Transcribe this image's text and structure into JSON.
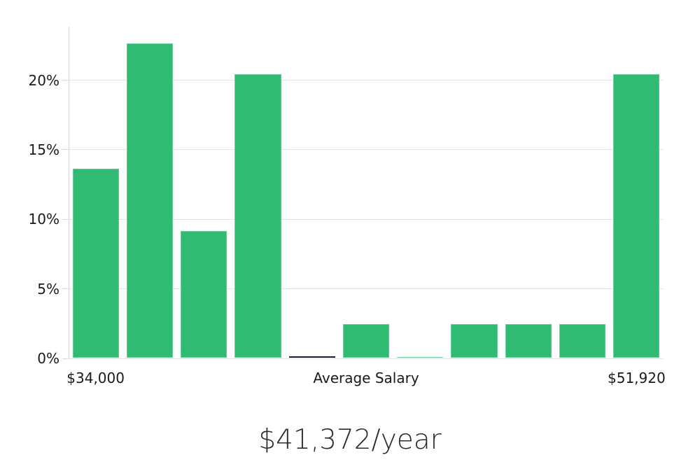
{
  "chart_data": {
    "type": "bar",
    "title": "$41,372/year",
    "xlabel": "",
    "ylabel": "",
    "grid": true,
    "legend_position": "none",
    "ylim": [
      0,
      23.85
    ],
    "y_ticks": [
      {
        "value": 0,
        "label": "0%"
      },
      {
        "value": 5,
        "label": "5%"
      },
      {
        "value": 10,
        "label": "10%"
      },
      {
        "value": 15,
        "label": "15%"
      },
      {
        "value": 20,
        "label": "20%"
      }
    ],
    "x_tick_labels": [
      {
        "bar_index": 0,
        "label": "$34,000"
      },
      {
        "bar_index": 5,
        "label": "Average Salary"
      },
      {
        "bar_index": 10,
        "label": "$51,920"
      }
    ],
    "bars": [
      {
        "value": 13.6,
        "color": "#2fbc72"
      },
      {
        "value": 22.6,
        "color": "#2fbc72"
      },
      {
        "value": 9.1,
        "color": "#2fbc72"
      },
      {
        "value": 20.4,
        "color": "#2fbc72"
      },
      {
        "value": 0.12,
        "color": "#1a1a2e"
      },
      {
        "value": 2.4,
        "color": "#2fbc72"
      },
      {
        "value": 0.07,
        "color": "#2fbc72"
      },
      {
        "value": 2.4,
        "color": "#2fbc72"
      },
      {
        "value": 2.4,
        "color": "#2fbc72"
      },
      {
        "value": 2.4,
        "color": "#2fbc72"
      },
      {
        "value": 20.4,
        "color": "#2fbc72"
      }
    ],
    "colors": {
      "bar_green": "#2fbc72",
      "bar_dark": "#1a1a2e",
      "gridline": "#e4e4e4",
      "axis_spine": "#d8d8d8",
      "tick_text": "#1a1a1a",
      "title_text": "#2b2b2b"
    }
  }
}
